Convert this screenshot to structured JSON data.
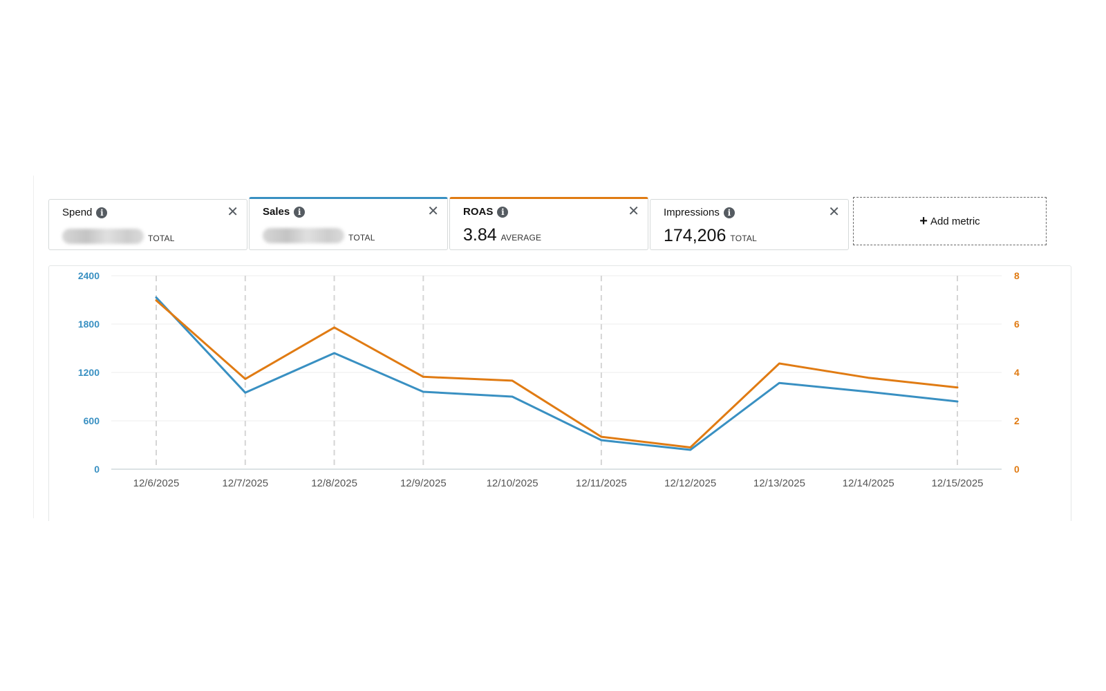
{
  "metrics": [
    {
      "label": "Spend",
      "value": "",
      "value_hidden": true,
      "suffix": "TOTAL",
      "active": false,
      "accent": ""
    },
    {
      "label": "Sales",
      "value": "",
      "value_hidden": true,
      "suffix": "TOTAL",
      "active": true,
      "accent": "#3990c2"
    },
    {
      "label": "ROAS",
      "value": "3.84",
      "value_hidden": false,
      "suffix": "AVERAGE",
      "active": true,
      "accent": "#e07b13"
    },
    {
      "label": "Impressions",
      "value": "174,206",
      "value_hidden": false,
      "suffix": "TOTAL",
      "active": false,
      "accent": ""
    }
  ],
  "add_metric_label": "Add metric",
  "icons": {
    "info": "info-icon",
    "close": "close-icon",
    "add": "plus-icon"
  },
  "colors": {
    "sales": "#3990c2",
    "roas": "#e07b13"
  },
  "chart_data": {
    "type": "line",
    "categories": [
      "12/6/2025",
      "12/7/2025",
      "12/8/2025",
      "12/9/2025",
      "12/10/2025",
      "12/11/2025",
      "12/12/2025",
      "12/13/2025",
      "12/14/2025",
      "12/15/2025"
    ],
    "series": [
      {
        "name": "Sales",
        "axis": "left",
        "color": "#3990c2",
        "values": [
          2130,
          950,
          1440,
          960,
          900,
          360,
          240,
          1070,
          960,
          840
        ]
      },
      {
        "name": "ROAS",
        "axis": "right",
        "color": "#e07b13",
        "values": [
          6.98,
          3.73,
          5.86,
          3.82,
          3.66,
          1.34,
          0.9,
          4.37,
          3.78,
          3.38
        ]
      }
    ],
    "y_left": {
      "ticks": [
        0,
        600,
        1200,
        1800,
        2400
      ],
      "range": [
        0,
        2400
      ]
    },
    "y_right": {
      "ticks": [
        0,
        2,
        4,
        6,
        8
      ],
      "range": [
        0,
        8
      ]
    },
    "dashed_gridlines_at": [
      "12/6/2025",
      "12/7/2025",
      "12/8/2025",
      "12/9/2025",
      "12/11/2025",
      "12/15/2025"
    ],
    "title": "",
    "xlabel": "",
    "ylabel": ""
  }
}
